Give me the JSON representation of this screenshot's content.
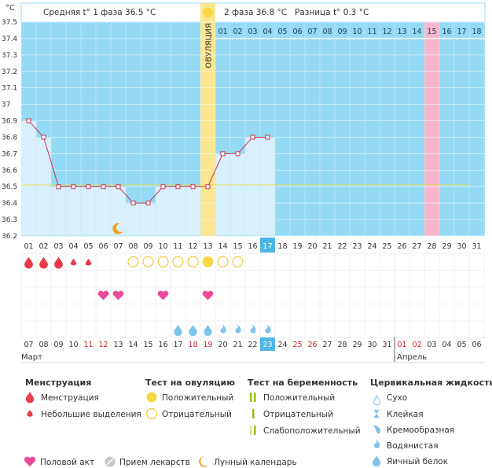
{
  "chart_data": {
    "type": "line",
    "title": "",
    "ylabel": "°C",
    "ylim": [
      36.2,
      37.5
    ],
    "yticks": [
      "37.5",
      "37.4",
      "37.3",
      "37.2",
      "37.1",
      "37",
      "36.9",
      "36.8",
      "36.7",
      "36.6",
      "36.5",
      "36.4",
      "36.3",
      "36.2"
    ],
    "header": {
      "phase1_label": "Средняя t° 1 фаза",
      "phase1_value": "36.5 °C",
      "phase2_label": "2 фаза",
      "phase2_value": "36.8 °C",
      "diff_label": "Разница t°",
      "diff_value": "0.3 °C"
    },
    "ovulation_label": "ОВУЛЯЦИЯ",
    "ovulation_day": 13,
    "phase2_day_numbers": [
      "01",
      "02",
      "03",
      "04",
      "05",
      "06",
      "07",
      "08",
      "09",
      "10",
      "11",
      "12",
      "13",
      "14",
      "15",
      "16",
      "17",
      "18"
    ],
    "highlight_phase2_day": "15",
    "cycle_days": [
      "01",
      "02",
      "03",
      "04",
      "05",
      "06",
      "07",
      "08",
      "09",
      "10",
      "11",
      "12",
      "13",
      "14",
      "15",
      "16",
      "17",
      "18",
      "19",
      "20",
      "21",
      "22",
      "23",
      "24",
      "25",
      "26",
      "27",
      "28",
      "29",
      "30",
      "31"
    ],
    "today_cycle_day": "17",
    "temperatures": [
      36.9,
      36.8,
      36.5,
      36.5,
      36.5,
      36.5,
      36.5,
      36.4,
      36.4,
      36.5,
      36.5,
      36.5,
      36.5,
      36.7,
      36.7,
      36.8,
      36.8
    ],
    "coverline": 36.51,
    "dates": [
      "07",
      "08",
      "09",
      "10",
      "11",
      "12",
      "13",
      "14",
      "15",
      "16",
      "17",
      "18",
      "19",
      "20",
      "21",
      "22",
      "23",
      "24",
      "25",
      "26",
      "27",
      "28",
      "29",
      "30",
      "31",
      "01",
      "02",
      "03",
      "04",
      "05",
      "06"
    ],
    "weekend_dates_idx": [
      4,
      5,
      11,
      12,
      18,
      19,
      25,
      26
    ],
    "today_date_idx": 16,
    "months": {
      "start": "Март",
      "next": "Апрель",
      "next_start_idx": 25
    },
    "menstruation": {
      "days": [
        1,
        2,
        3,
        4,
        5
      ],
      "levels": [
        "big",
        "big",
        "big",
        "small",
        "small"
      ]
    },
    "ovulation_test": {
      "positive_days": [
        13
      ],
      "negative_days": [
        8,
        9,
        10,
        11,
        12,
        14,
        15
      ]
    },
    "intercourse_days": [
      6,
      7,
      10,
      13
    ],
    "moon_days": [
      7
    ],
    "cervical_fluid": {
      "egg_white": [
        11,
        12,
        13
      ],
      "watery": [
        14,
        15,
        16,
        17
      ]
    },
    "colors": {
      "phase1": "#95daf4",
      "phase2": "#95daf4",
      "ovulation": "#fbe790",
      "highlight": "#f7b6cb",
      "bar_fill": "#d7f0fc",
      "line": "#c8324e",
      "coverline": "#e5e04a",
      "menstruation": "#e83c4a",
      "heart": "#ec4b9c",
      "test_yellow": "#f8d846",
      "fluid_blue": "#7fc2ea",
      "weekend_red": "#cc1f2f"
    }
  },
  "legend": {
    "menstruation": {
      "title": "Менструация",
      "items": [
        {
          "label": "Менструация",
          "icon": "drop-big-icon"
        },
        {
          "label": "Небольшие выделения",
          "icon": "drop-small-icon"
        }
      ]
    },
    "ovulation_test": {
      "title": "Тест на овуляцию",
      "items": [
        {
          "label": "Положительный",
          "icon": "circle-filled-icon"
        },
        {
          "label": "Отрицательный",
          "icon": "circle-outline-icon"
        }
      ]
    },
    "pregnancy_test": {
      "title": "Тест на беременность",
      "items": [
        {
          "label": "Положительный",
          "icon": "two-lines-icon"
        },
        {
          "label": "Отрицательный",
          "icon": "one-line-icon"
        },
        {
          "label": "Слабоположительный",
          "icon": "faint-line-icon"
        }
      ]
    },
    "cervical_fluid": {
      "title": "Цервикальная жидкость",
      "items": [
        {
          "label": "Сухо",
          "icon": "dry-icon"
        },
        {
          "label": "Клейкая",
          "icon": "sticky-icon"
        },
        {
          "label": "Кремообразная",
          "icon": "creamy-icon"
        },
        {
          "label": "Водянистая",
          "icon": "watery-icon"
        },
        {
          "label": "Яичный белок",
          "icon": "egg-white-icon"
        }
      ]
    },
    "bottom": [
      {
        "label": "Половой акт",
        "icon": "heart-icon"
      },
      {
        "label": "Прием лекарств",
        "icon": "pill-icon"
      },
      {
        "label": "Лунный календарь",
        "icon": "moon-icon"
      }
    ]
  }
}
